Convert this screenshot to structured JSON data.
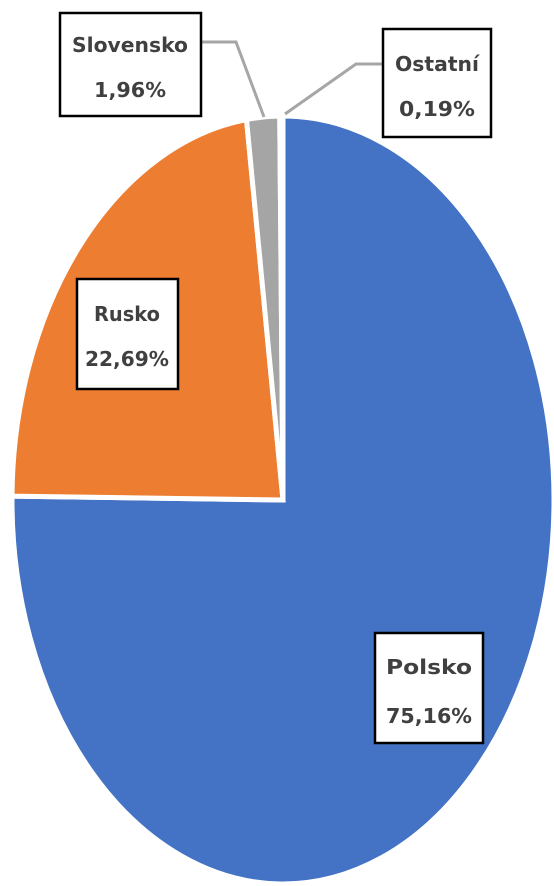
{
  "chart_data": {
    "type": "pie",
    "title": "",
    "slices": [
      {
        "label": "Polsko",
        "value": 75.16,
        "display": "75,16%",
        "color": "#4472C4"
      },
      {
        "label": "Rusko",
        "value": 22.69,
        "display": "22,69%",
        "color": "#ED7D31"
      },
      {
        "label": "Slovensko",
        "value": 1.96,
        "display": "1,96%",
        "color": "#A5A5A5"
      },
      {
        "label": "Ostatní",
        "value": 0.19,
        "display": "0,19%",
        "color": "#FFC000"
      }
    ],
    "start_angle": "12 o'clock",
    "direction": "clockwise",
    "data_labels": "category name and percentage",
    "legend": "none"
  }
}
